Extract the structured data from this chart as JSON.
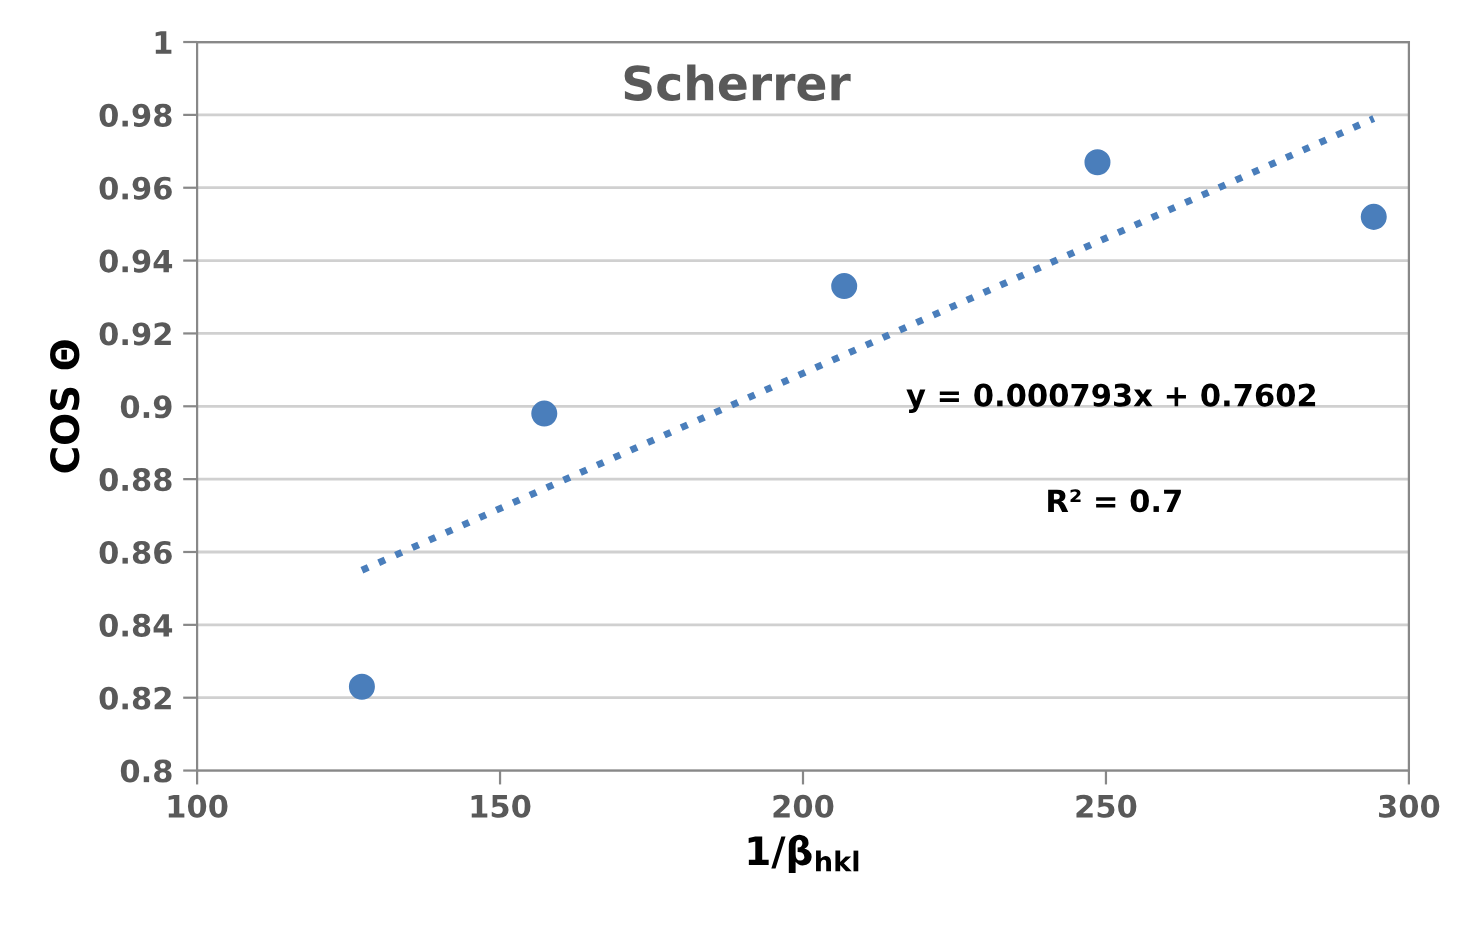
{
  "chart_data": {
    "type": "scatter",
    "title": "Scherrer",
    "xlabel": "1/β$_{hkl}$",
    "ylabel": "COS Θ",
    "annotations": [
      "y = 0.000793x + 0.7602",
      "R² = 0.7"
    ],
    "series": [
      {
        "color": "#4a7ebb",
        "x": [
          127.2,
          157.3,
          206.8,
          248.6,
          294.2
        ],
        "values": [
          0.823,
          0.898,
          0.933,
          0.967,
          0.952
        ],
        "marker": "circle"
      },
      {
        "type": "line",
        "color": "#4a7ebb",
        "x": [
          127.2,
          294.2
        ],
        "values": [
          0.855,
          0.979
        ],
        "line_style": "dotted",
        "marker": "none"
      }
    ],
    "xlim": [
      100,
      300
    ],
    "xticks": [
      100,
      150,
      200,
      250,
      300
    ],
    "ylim": [
      0.8,
      1
    ],
    "yticks": [
      0.8,
      0.82,
      0.84,
      0.86,
      0.88,
      0.9,
      0.92,
      0.94,
      0.96,
      0.98,
      1
    ],
    "grid": "y",
    "legend": false
  }
}
